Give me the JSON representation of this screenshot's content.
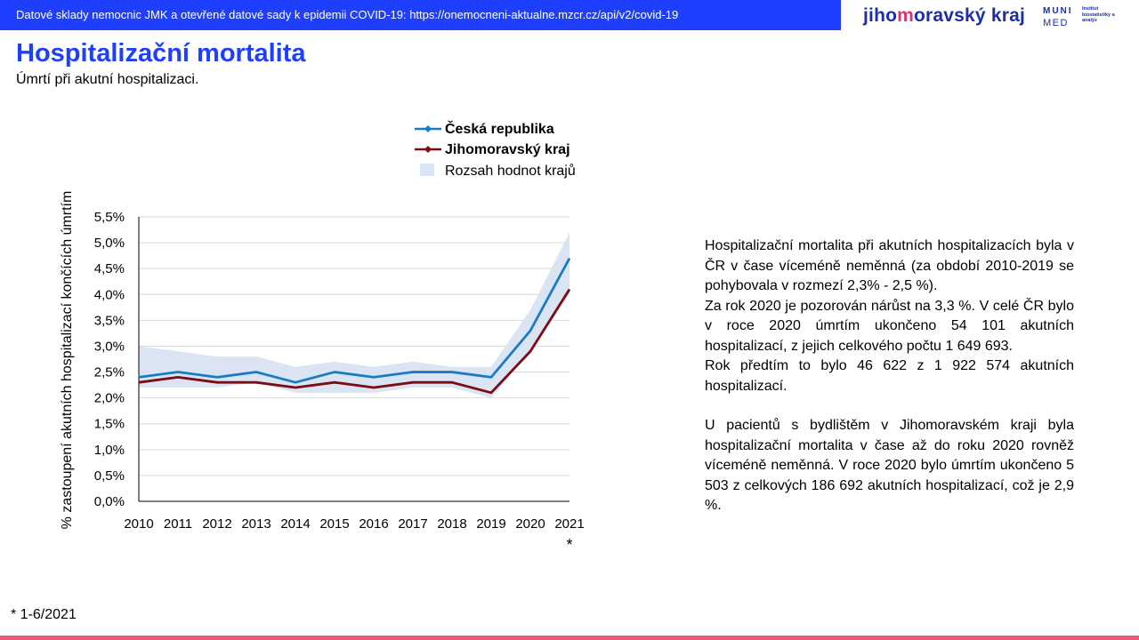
{
  "header": {
    "source_text": "Datové sklady nemocnic JMK a otevřené datové sady k epidemii COVID-19: https://onemocneni-aktualne.mzcr.cz/api/v2/covid-19",
    "logo_jmk_pre": "jiho",
    "logo_jmk_mid": "m",
    "logo_jmk_post": "oravský kraj",
    "logo_muni": "MUNI",
    "logo_med": "MED",
    "logo_institute": "Institut biostatistiky a analýz"
  },
  "page": {
    "title": "Hospitalizační mortalita",
    "subtitle": "Úmrtí při akutní hospitalizaci."
  },
  "chart_data": {
    "type": "line",
    "title": "",
    "xlabel": "",
    "ylabel": "% zastoupení akutních  hospitalizací končících úmrtím",
    "categories": [
      "2010",
      "2011",
      "2012",
      "2013",
      "2014",
      "2015",
      "2016",
      "2017",
      "2018",
      "2019",
      "2020",
      "2021"
    ],
    "x_note": "*",
    "ylim": [
      0,
      5.5
    ],
    "yticks": [
      0,
      0.5,
      1,
      1.5,
      2,
      2.5,
      3,
      3.5,
      4,
      4.5,
      5,
      5.5
    ],
    "ytick_labels": [
      "0,0%",
      "0,5%",
      "1,0%",
      "1,5%",
      "2,0%",
      "2,5%",
      "3,0%",
      "3,5%",
      "4,0%",
      "4,5%",
      "5,0%",
      "5,5%"
    ],
    "grid": true,
    "legend_position": "top",
    "series": [
      {
        "name": "Česká republika",
        "color": "#1a7bc4",
        "values": [
          2.4,
          2.5,
          2.4,
          2.5,
          2.3,
          2.5,
          2.4,
          2.5,
          2.5,
          2.4,
          3.3,
          4.7
        ]
      },
      {
        "name": "Jihomoravský kraj",
        "color": "#7a0c12",
        "values": [
          2.3,
          2.4,
          2.3,
          2.3,
          2.2,
          2.3,
          2.2,
          2.3,
          2.3,
          2.1,
          2.9,
          4.1
        ]
      }
    ],
    "range": {
      "name": "Rozsah hodnot krajů",
      "color": "#dbe4f3",
      "low": [
        2.2,
        2.2,
        2.2,
        2.3,
        2.1,
        2.1,
        2.1,
        2.2,
        2.2,
        2.0,
        2.9,
        4.0
      ],
      "high": [
        3.0,
        2.9,
        2.8,
        2.8,
        2.6,
        2.7,
        2.6,
        2.7,
        2.6,
        2.6,
        3.7,
        5.2
      ]
    }
  },
  "text": {
    "p1": "Hospitalizační mortalita při akutních hospitalizacích byla v ČR v čase víceméně neměnná (za období 2010-2019 se pohybovala v rozmezí 2,3% - 2,5 %).",
    "p2": "Za rok 2020 je pozorován nárůst na 3,3 %. V celé ČR bylo v roce 2020 úmrtím ukončeno 54 101 akutních hospitalizací, z jejich celkového počtu 1 649 693.",
    "p3": "Rok předtím to bylo 46 622 z 1 922 574 akutních hospitalizací.",
    "p4": "U pacientů s bydlištěm v Jihomoravském kraji byla hospitalizační mortalita v čase až do roku 2020 rovněž víceméně neměnná. V roce 2020 bylo úmrtím ukončeno 5 503 z celkových 186 692 akutních hospitalizací, což je 2,9 %."
  },
  "footnote": "* 1-6/2021"
}
